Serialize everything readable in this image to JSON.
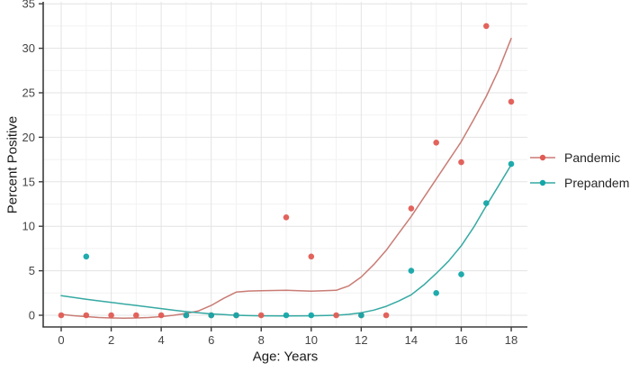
{
  "figure": {
    "background_color": "#ffffff",
    "axis_line_color": "#3c3c3c",
    "tick_label_color": "#454545",
    "grid_major_color": "#e3e3e3",
    "grid_minor_color": "#f2f2f2"
  },
  "chart_data": {
    "type": "scatter",
    "title": "",
    "xlabel": "Age: Years",
    "ylabel": "Percent Positive",
    "xlim": [
      -0.7,
      18.65
    ],
    "ylim": [
      -1.3,
      35.2
    ],
    "grid": "on",
    "legend_position": "right-center",
    "x_ticks": [
      0,
      2,
      4,
      6,
      8,
      10,
      12,
      14,
      16,
      18
    ],
    "x_minor_ticks": [
      1,
      3,
      5,
      7,
      9,
      11,
      13,
      15,
      17
    ],
    "y_ticks": [
      0,
      5,
      10,
      15,
      20,
      25,
      30,
      35
    ],
    "y_minor_ticks": [
      2.5,
      7.5,
      12.5,
      17.5,
      22.5,
      27.5,
      32.5
    ],
    "series": [
      {
        "name": "Pandemic",
        "point_color": "#E05B53",
        "line_color": "#C97C75",
        "points": [
          [
            0,
            0
          ],
          [
            1,
            0
          ],
          [
            2,
            0
          ],
          [
            3,
            0
          ],
          [
            4,
            0
          ],
          [
            5,
            0
          ],
          [
            6,
            0
          ],
          [
            7,
            0
          ],
          [
            8,
            0
          ],
          [
            9,
            11
          ],
          [
            10,
            6.6
          ],
          [
            11,
            0
          ],
          [
            12,
            0
          ],
          [
            13,
            0
          ],
          [
            14,
            12
          ],
          [
            15,
            19.4
          ],
          [
            16,
            17.2
          ],
          [
            17,
            32.5
          ],
          [
            18,
            24
          ]
        ],
        "smooth": [
          [
            0,
            0.1
          ],
          [
            0.5,
            -0.05
          ],
          [
            1,
            -0.15
          ],
          [
            1.5,
            -0.25
          ],
          [
            2,
            -0.3
          ],
          [
            2.5,
            -0.32
          ],
          [
            3,
            -0.3
          ],
          [
            3.5,
            -0.25
          ],
          [
            4,
            -0.15
          ],
          [
            4.5,
            0
          ],
          [
            5,
            0.2
          ],
          [
            5.5,
            0.5
          ],
          [
            6,
            1.1
          ],
          [
            6.5,
            1.9
          ],
          [
            7,
            2.6
          ],
          [
            7.5,
            2.72
          ],
          [
            8,
            2.75
          ],
          [
            9,
            2.8
          ],
          [
            10,
            2.7
          ],
          [
            11,
            2.8
          ],
          [
            11.5,
            3.3
          ],
          [
            12,
            4.3
          ],
          [
            12.5,
            5.7
          ],
          [
            13,
            7.3
          ],
          [
            13.5,
            9.2
          ],
          [
            14,
            11.1
          ],
          [
            14.5,
            13.2
          ],
          [
            15,
            15.3
          ],
          [
            15.5,
            17.4
          ],
          [
            16,
            19.5
          ],
          [
            16.5,
            22.0
          ],
          [
            17,
            24.6
          ],
          [
            17.5,
            27.6
          ],
          [
            18,
            31.1
          ]
        ]
      },
      {
        "name": "Prepandemic",
        "point_color": "#14A7A9",
        "line_color": "#35A9A2",
        "points": [
          [
            1,
            6.6
          ],
          [
            5,
            0
          ],
          [
            6,
            0
          ],
          [
            7,
            0
          ],
          [
            9,
            0
          ],
          [
            10,
            0
          ],
          [
            12,
            0
          ],
          [
            14,
            5
          ],
          [
            15,
            2.5
          ],
          [
            16,
            4.6
          ],
          [
            17,
            12.6
          ],
          [
            18,
            17
          ]
        ],
        "smooth": [
          [
            0,
            2.2
          ],
          [
            0.5,
            2.0
          ],
          [
            1,
            1.8
          ],
          [
            1.5,
            1.62
          ],
          [
            2,
            1.45
          ],
          [
            2.5,
            1.27
          ],
          [
            3,
            1.1
          ],
          [
            3.5,
            0.92
          ],
          [
            4,
            0.75
          ],
          [
            4.5,
            0.57
          ],
          [
            5,
            0.4
          ],
          [
            5.5,
            0.27
          ],
          [
            6,
            0.15
          ],
          [
            6.5,
            0.07
          ],
          [
            7,
            0
          ],
          [
            7.5,
            -0.04
          ],
          [
            8,
            -0.06
          ],
          [
            9,
            -0.07
          ],
          [
            10,
            -0.06
          ],
          [
            11,
            0
          ],
          [
            11.5,
            0.1
          ],
          [
            12,
            0.28
          ],
          [
            12.5,
            0.58
          ],
          [
            13,
            1.0
          ],
          [
            13.5,
            1.6
          ],
          [
            14,
            2.3
          ],
          [
            14.5,
            3.4
          ],
          [
            15,
            4.7
          ],
          [
            15.5,
            6.1
          ],
          [
            16,
            7.8
          ],
          [
            16.5,
            9.9
          ],
          [
            17,
            12.3
          ],
          [
            17.5,
            14.6
          ],
          [
            18,
            16.9
          ]
        ]
      }
    ]
  }
}
